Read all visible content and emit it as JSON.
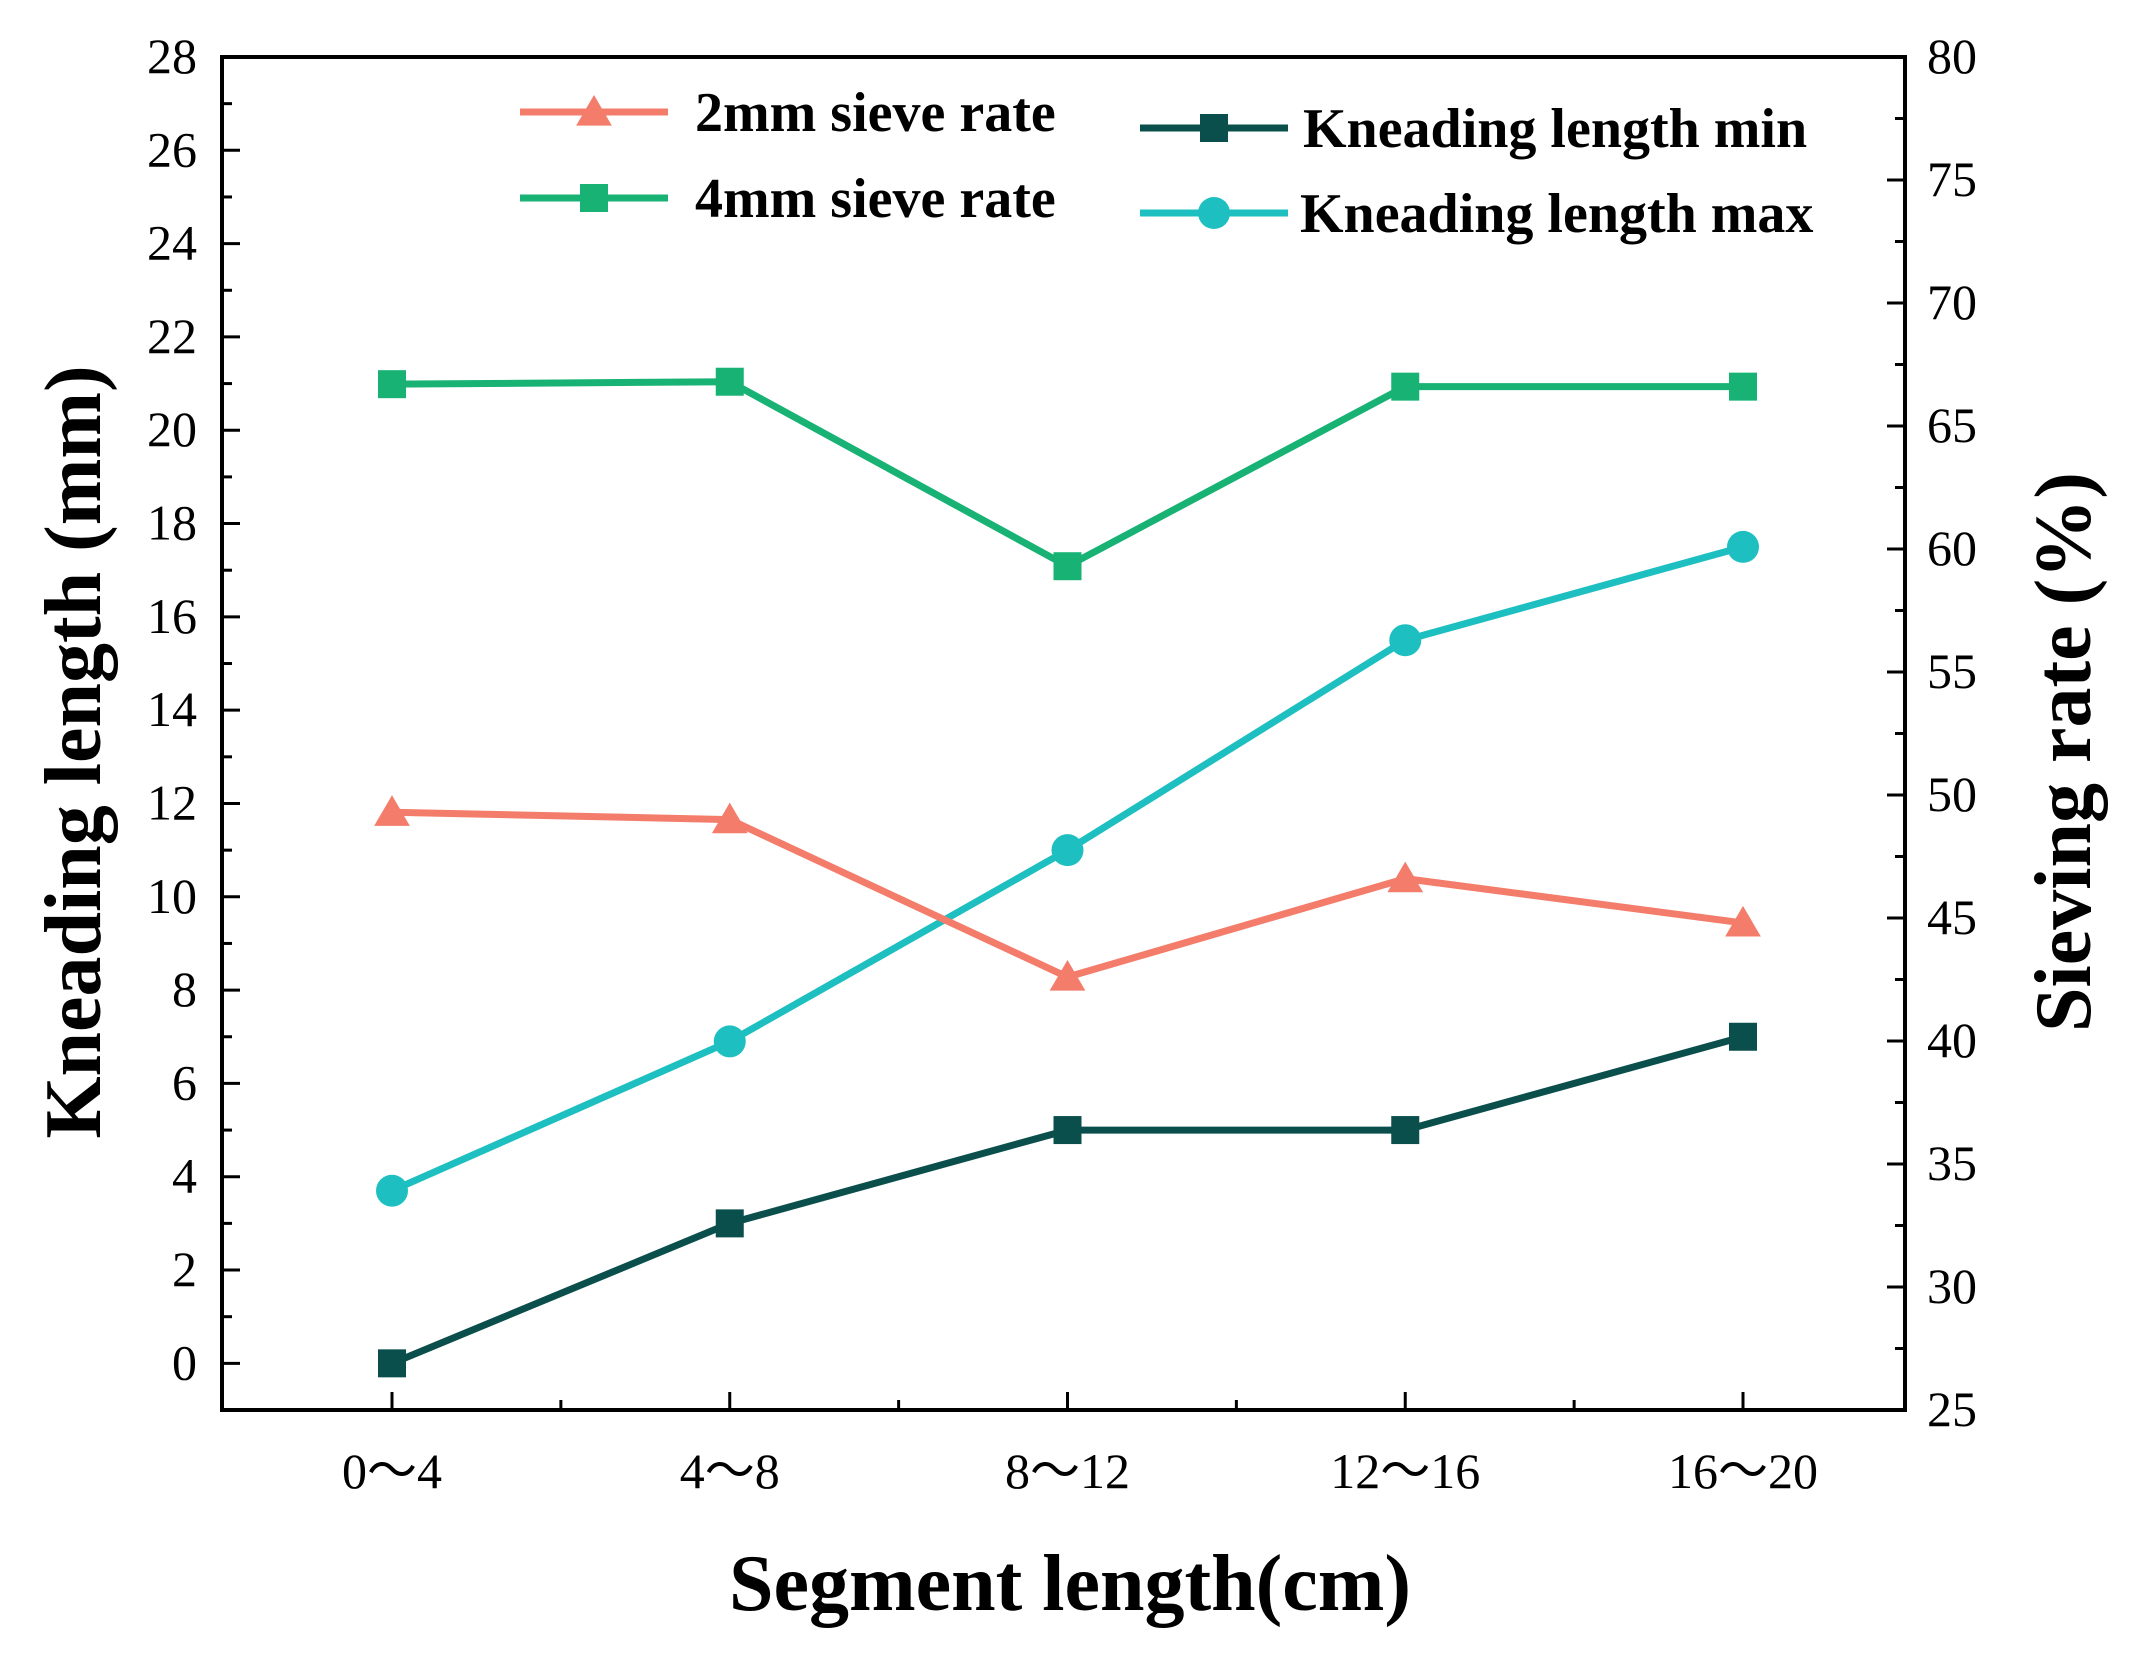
{
  "chart_data": {
    "type": "line",
    "title": "",
    "xlabel": "Segment length(cm)",
    "ylabel": "Kneading length (mm)",
    "y2label": "Sieving rate (%)",
    "categories": [
      "0～4",
      "4～8",
      "8～12",
      "12～16",
      "16～20"
    ],
    "ylim": [
      -1,
      28
    ],
    "y2lim": [
      25,
      80
    ],
    "yticks": [
      0,
      2,
      4,
      6,
      8,
      10,
      12,
      14,
      16,
      18,
      20,
      22,
      24,
      26,
      28
    ],
    "y2ticks": [
      25,
      30,
      35,
      40,
      45,
      50,
      55,
      60,
      65,
      70,
      75,
      80
    ],
    "grid": false,
    "legend_position": "top",
    "series": [
      {
        "name": "2mm sieve rate",
        "axis": "right",
        "color": "#f47c6a",
        "marker": "triangle",
        "values": [
          49.3,
          49.0,
          42.6,
          46.6,
          44.8
        ]
      },
      {
        "name": "4mm sieve rate",
        "axis": "right",
        "color": "#18b274",
        "marker": "square",
        "values": [
          66.7,
          66.8,
          59.3,
          66.6,
          66.6
        ]
      },
      {
        "name": "Kneading length min",
        "axis": "left",
        "color": "#0b4f4c",
        "marker": "square",
        "values": [
          0,
          3,
          5,
          5,
          7
        ]
      },
      {
        "name": "Kneading length max",
        "axis": "left",
        "color": "#1ebfc1",
        "marker": "circle",
        "values": [
          3.7,
          6.9,
          11.0,
          15.5,
          17.5
        ]
      }
    ]
  }
}
